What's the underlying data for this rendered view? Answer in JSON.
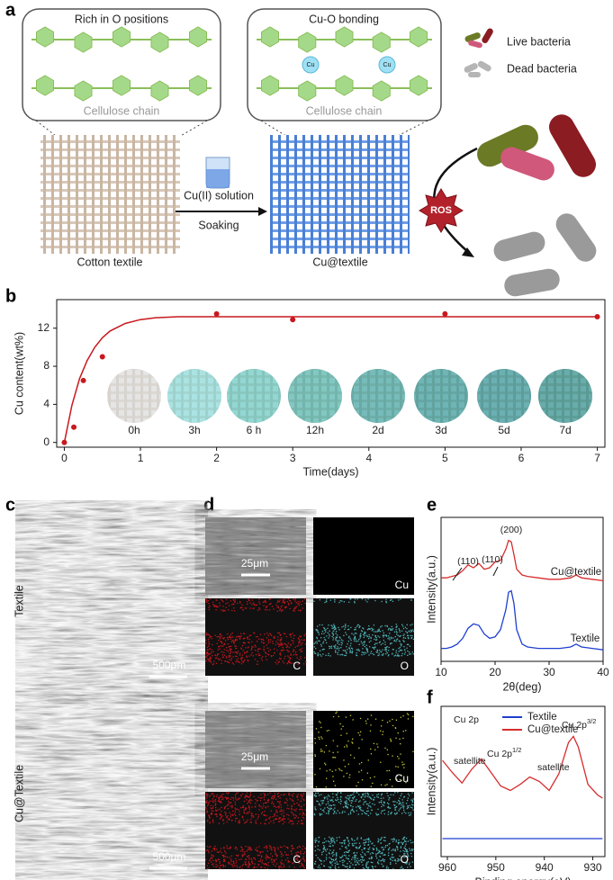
{
  "figure": {
    "panel_labels": [
      "a",
      "b",
      "c",
      "d",
      "e",
      "f"
    ],
    "a": {
      "bubble_left": "Rich in O positions",
      "chain_left": "Cellulose chain",
      "bubble_right": "Cu-O bonding",
      "chain_right": "Cellulose chain",
      "cu": "Cu",
      "live": "Live bacteria",
      "dead": "Dead bacteria",
      "solution": "Cu(II) solution",
      "soaking": "Soaking",
      "cotton": "Cotton textile",
      "cutextile": "Cu@textile",
      "ros": "ROS"
    },
    "b_insets": [
      "0h",
      "3h",
      "6 h",
      "12h",
      "2d",
      "3d",
      "5d",
      "7d"
    ],
    "c": {
      "row1": "Textile",
      "row2": "Cu@Textile",
      "scale": "500μm"
    },
    "d": {
      "scale": "25μm",
      "cu": "Cu",
      "c": "C",
      "o": "O"
    }
  },
  "chart_data": [
    {
      "type": "scatter",
      "ylabel": "Cu content(wt%)",
      "xlabel": "Time(days)",
      "color": "#c8191e",
      "x": [
        0,
        0.125,
        0.25,
        0.5,
        2,
        3,
        5,
        7
      ],
      "values": [
        0,
        1.6,
        6.5,
        9,
        13.5,
        12.9,
        13.5,
        13.2
      ],
      "fit": {
        "x": [
          0,
          0.1,
          0.2,
          0.3,
          0.4,
          0.5,
          0.6,
          0.8,
          1,
          1.2,
          1.5,
          2,
          3,
          5,
          7
        ],
        "values": [
          0,
          3.9,
          6.7,
          8.6,
          10,
          11,
          11.7,
          12.5,
          12.9,
          13.1,
          13.2,
          13.2,
          13.2,
          13.2,
          13.2
        ]
      },
      "xlim": [
        -0.1,
        7.1
      ],
      "ylim": [
        -0.5,
        15
      ],
      "xticks": [
        0,
        1,
        2,
        3,
        4,
        5,
        6,
        7
      ],
      "yticks": [
        0,
        4,
        8,
        12
      ]
    },
    {
      "type": "line",
      "ylabel": "Intensity(a.u.)",
      "xlabel": "2θ(deg)",
      "x": [
        10,
        11,
        12,
        13,
        14,
        15,
        16,
        17,
        18,
        19,
        20,
        21,
        22,
        22.5,
        23,
        23.5,
        24,
        25,
        26,
        28,
        30,
        32,
        34,
        35,
        36,
        38,
        40
      ],
      "series": [
        {
          "name": "Cu@textile",
          "color": "#d62d2d",
          "values": [
            5.8,
            5.8,
            5.9,
            6.0,
            6.3,
            6.7,
            6.5,
            6.8,
            6.4,
            6.5,
            6.9,
            7.0,
            7.8,
            8.4,
            8.3,
            7.4,
            6.4,
            6.0,
            5.9,
            5.8,
            5.7,
            5.7,
            5.8,
            6.0,
            5.8,
            5.7,
            5.6
          ]
        },
        {
          "name": "Textile",
          "color": "#1f3fd0",
          "values": [
            0.9,
            0.9,
            1.0,
            1.2,
            1.6,
            2.3,
            2.6,
            2.5,
            1.9,
            1.6,
            1.7,
            2.2,
            3.6,
            4.8,
            4.9,
            4.0,
            2.2,
            1.2,
            1.0,
            0.9,
            0.9,
            0.9,
            1.0,
            1.2,
            1.0,
            0.9,
            0.8
          ]
        }
      ],
      "annotations": [
        "(110)",
        "(110)",
        "(200)"
      ],
      "xlim": [
        10,
        40
      ],
      "ylim": [
        0,
        10
      ],
      "xticks": [
        10,
        20,
        30,
        40
      ]
    },
    {
      "type": "line",
      "ylabel": "Intensity(a.u.)",
      "xlabel": "Binding energy(eV)",
      "x": [
        961,
        959,
        957,
        955,
        953,
        951,
        949,
        947,
        945,
        943,
        941,
        939,
        937,
        935,
        934,
        933,
        931,
        929,
        928
      ],
      "series": [
        {
          "name": "Textile",
          "color": "#1f3fd0",
          "values": [
            1.2,
            1.2,
            1.2,
            1.2,
            1.2,
            1.2,
            1.2,
            1.2,
            1.2,
            1.2,
            1.2,
            1.2,
            1.2,
            1.2,
            1.2,
            1.2,
            1.2,
            1.2,
            1.2
          ]
        },
        {
          "name": "Cu@textile",
          "color": "#d62d2d",
          "values": [
            6.4,
            5.6,
            4.9,
            5.8,
            6.5,
            5.6,
            4.7,
            4.4,
            4.8,
            5.3,
            5.0,
            4.4,
            5.5,
            7.6,
            8.0,
            7.3,
            4.8,
            4.1,
            3.9
          ]
        }
      ],
      "annotations": [
        {
          "text": "Cu 2p",
          "sup": ""
        },
        {
          "text": "satellite",
          "sup": ""
        },
        {
          "text": "Cu 2p",
          "sup": "1/2"
        },
        {
          "text": "satellite",
          "sup": ""
        },
        {
          "text": "Cu 2p",
          "sup": "3/2"
        }
      ],
      "xlim": [
        961.3,
        927.5
      ],
      "ylim": [
        0,
        10
      ],
      "xticks": [
        960,
        950,
        940,
        930
      ]
    }
  ]
}
